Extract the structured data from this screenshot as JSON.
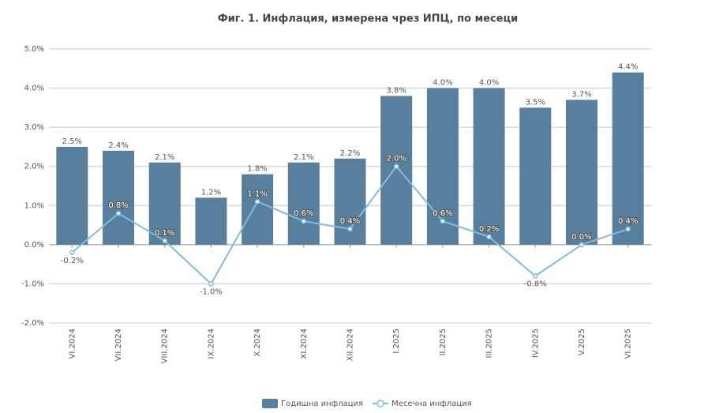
{
  "chart_data": {
    "type": "bar",
    "title": "Фиг. 1. Инфлация, измерена чрез ИПЦ, по месеци",
    "categories": [
      "VI.2024",
      "VII.2024",
      "VIII.2024",
      "IX.2024",
      "X.2024",
      "XI.2024",
      "XII.2024",
      "I.2025",
      "II.2025",
      "III.2025",
      "IV.2025",
      "V.2025",
      "VI.2025"
    ],
    "series": [
      {
        "name": "Годишна инфлация",
        "type": "bar",
        "color": "#587f9e",
        "values": [
          2.5,
          2.4,
          2.1,
          1.2,
          1.8,
          2.1,
          2.2,
          3.8,
          4.0,
          4.0,
          3.5,
          3.7,
          4.4
        ],
        "value_labels": [
          "2.5%",
          "2.4%",
          "2.1%",
          "1.2%",
          "1.8%",
          "2.1%",
          "2.2%",
          "3.8%",
          "4.0%",
          "4.0%",
          "3.5%",
          "3.7%",
          "4.4%"
        ]
      },
      {
        "name": "Месечна инфлация",
        "type": "line",
        "color": "#7fbde0",
        "values": [
          -0.2,
          0.8,
          0.1,
          -1.0,
          1.1,
          0.6,
          0.4,
          2.0,
          0.6,
          0.2,
          -0.8,
          0.0,
          0.4
        ],
        "value_labels": [
          "-0.2%",
          "0.8%",
          "0.1%",
          "-1.0%",
          "1.1%",
          "0.6%",
          "0.4%",
          "2.0%",
          "0.6%",
          "0.2%",
          "-0.8%",
          "0.0%",
          "0.4%"
        ]
      }
    ],
    "ylim": [
      -2,
      5
    ],
    "yticks": [
      {
        "value": -2,
        "label": "-2.0%"
      },
      {
        "value": -1,
        "label": "-1.0%"
      },
      {
        "value": 0,
        "label": "0.0%"
      },
      {
        "value": 1,
        "label": "1.0%"
      },
      {
        "value": 2,
        "label": "2.0%"
      },
      {
        "value": 3,
        "label": "3.0%"
      },
      {
        "value": 4,
        "label": "4.0%"
      },
      {
        "value": 5,
        "label": "5.0%"
      }
    ],
    "grid": true,
    "legend": "bottom"
  }
}
